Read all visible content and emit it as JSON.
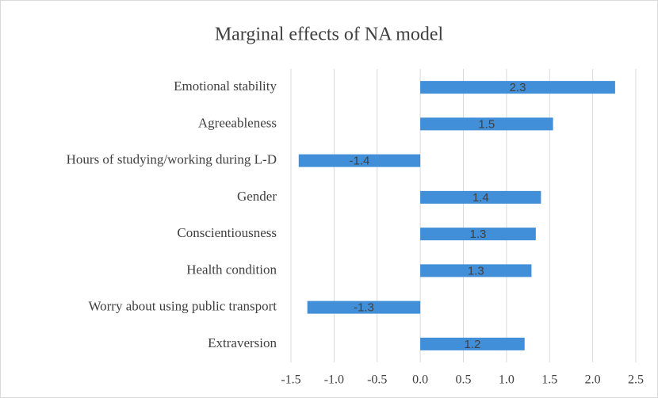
{
  "chart_data": {
    "type": "barh",
    "title": "Marginal effects of NA model",
    "categories": [
      "Emotional stability",
      "Agreeableness",
      "Hours of studying/working during L-D",
      "Gender",
      "Conscientiousness",
      "Health condition",
      "Worry about using public transport",
      "Extraversion"
    ],
    "values": [
      2.26,
      1.54,
      -1.41,
      1.4,
      1.34,
      1.29,
      -1.31,
      1.21
    ],
    "value_labels": [
      "2.3",
      "1.5",
      "-1.4",
      "1.4",
      "1.3",
      "1.3",
      "-1.3",
      "1.2"
    ],
    "color": "#418fd8",
    "xlim": [
      -1.5,
      2.5
    ],
    "xticks": [
      -1.5,
      {
        "value": -1,
        "label": "-1.0"
      },
      -0.5,
      {
        "value": 0,
        "label": "0.0"
      },
      0.5,
      {
        "value": 1,
        "label": "1.0"
      },
      1.5,
      {
        "value": 2,
        "label": "2.0"
      },
      2.5
    ],
    "grid": true
  }
}
